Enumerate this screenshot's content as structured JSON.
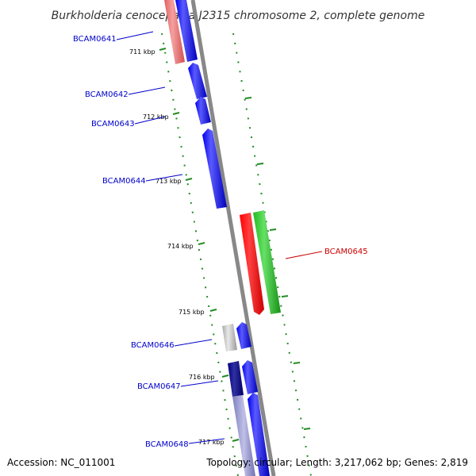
{
  "title": "Burkholderia cenocepacia J2315 chromosome 2, complete genome",
  "accession_text": "Accession: NC_011001",
  "topology_text": "Topology: circular; Length: 3,217,062 bp; Genes: 2,819",
  "colors": {
    "backbone": "#888888",
    "tick": "#228b22",
    "label_blue": "#0000cc",
    "label_red": "#cc0000"
  },
  "ticks": [
    {
      "label": "711 kbp"
    },
    {
      "label": "712 kbp"
    },
    {
      "label": "713 kbp"
    },
    {
      "label": "714 kbp"
    },
    {
      "label": "715 kbp"
    },
    {
      "label": "716 kbp"
    },
    {
      "label": "717 kbp"
    }
  ],
  "genes": [
    {
      "name": "BCAM0641",
      "color": "blue"
    },
    {
      "name": "BCAM0642",
      "color": "blue"
    },
    {
      "name": "BCAM0643",
      "color": "blue"
    },
    {
      "name": "BCAM0644",
      "color": "blue"
    },
    {
      "name": "BCAM0645",
      "color": "red"
    },
    {
      "name": "BCAM0646",
      "color": "blue"
    },
    {
      "name": "BCAM0647",
      "color": "blue"
    },
    {
      "name": "BCAM0648",
      "color": "blue"
    }
  ]
}
